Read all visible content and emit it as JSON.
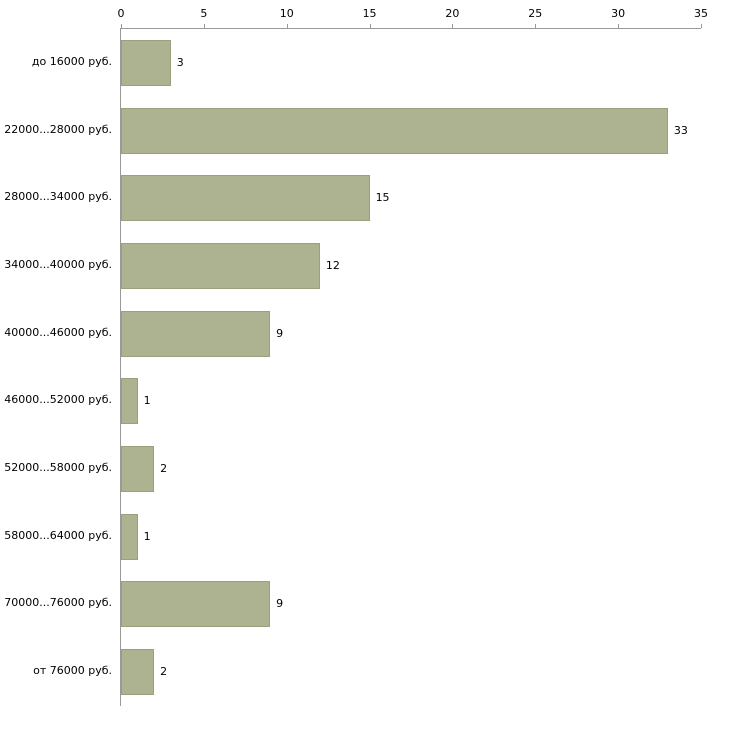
{
  "chart_data": {
    "type": "bar",
    "orientation": "horizontal",
    "title": "",
    "xlabel": "",
    "ylabel": "",
    "categories": [
      "до 16000 руб.",
      "22000...28000 руб.",
      "28000...34000 руб.",
      "34000...40000 руб.",
      "40000...46000 руб.",
      "46000...52000 руб.",
      "52000...58000 руб.",
      "58000...64000 руб.",
      "70000...76000 руб.",
      "от 76000 руб."
    ],
    "values": [
      3,
      33,
      15,
      12,
      9,
      1,
      2,
      1,
      9,
      2
    ],
    "xlim": [
      0,
      35
    ],
    "xticks": [
      0,
      5,
      10,
      15,
      20,
      25,
      30,
      35
    ],
    "x_axis_position": "top",
    "grid": false,
    "legend": "none",
    "value_labels": true,
    "bar_color": "#adb391",
    "bar_border_color": "#99a07e",
    "axis_color": "#999999",
    "background_color": "#ffffff"
  }
}
